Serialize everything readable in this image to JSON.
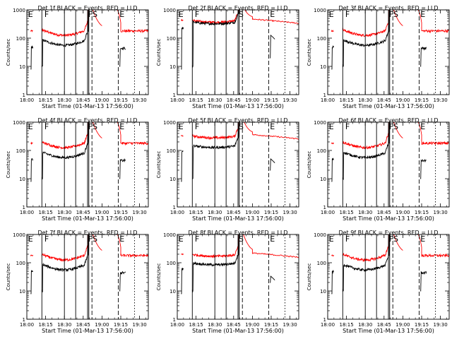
{
  "chart_data": {
    "type": "line",
    "xscale": "time",
    "yscale": "log",
    "ylim": [
      1,
      1000
    ],
    "xlim": [
      "18:00",
      "19:37"
    ],
    "ytick_labels": [
      "1",
      "10",
      "100",
      "1000"
    ],
    "xtick_labels": [
      "18:00",
      "18:15",
      "18:30",
      "18:45",
      "19:00",
      "19:15",
      "19:30"
    ],
    "ylabel": "Counts/sec",
    "xlabel": "Start Time (01-Mar-13 17:56:00)",
    "colors": {
      "events": "#000000",
      "lld": "#ff0000"
    },
    "panels": [
      {
        "title": "Det 1f BLACK = Events, RED = LLD",
        "markers": [
          "E",
          "F",
          "FS",
          "E"
        ],
        "events_base": 80,
        "lld_base": 180
      },
      {
        "title": "Det 2f BLACK = Events, RED = LLD",
        "markers": [
          "E",
          "F",
          "S",
          "E"
        ],
        "events_base": 380,
        "lld_base": 430
      },
      {
        "title": "Det 3f BLACK = Events, RED = LLD",
        "markers": [
          "E",
          "F",
          "FS",
          "E"
        ],
        "events_base": 80,
        "lld_base": 180
      },
      {
        "title": "Det 4f BLACK = Events, RED = LLD",
        "markers": [
          "E",
          "F",
          "FS",
          "E"
        ],
        "events_base": 80,
        "lld_base": 180
      },
      {
        "title": "Det 5f BLACK = Events, RED = LLD",
        "markers": [
          "E",
          "F",
          "S",
          "E"
        ],
        "events_base": 150,
        "lld_base": 330
      },
      {
        "title": "Det 6f BLACK = Events, RED = LLD",
        "markers": [
          "E",
          "F",
          "FS",
          "E"
        ],
        "events_base": 80,
        "lld_base": 180
      },
      {
        "title": "Det 7f BLACK = Events, RED = LLD",
        "markers": [
          "E",
          "F",
          "FS",
          "E"
        ],
        "events_base": 80,
        "lld_base": 180
      },
      {
        "title": "Det 8f BLACK = Events, RED = LLD",
        "markers": [
          "E",
          "F",
          "S",
          "E"
        ],
        "events_base": 100,
        "lld_base": 200
      },
      {
        "title": "Det 9f BLACK = Events, RED = LLD",
        "markers": [
          "E",
          "F",
          "FS",
          "E"
        ],
        "events_base": 80,
        "lld_base": 180
      }
    ]
  }
}
